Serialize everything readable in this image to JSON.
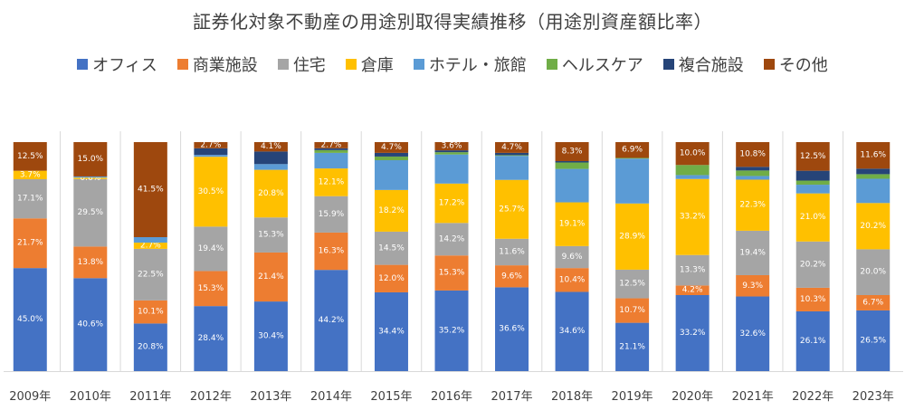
{
  "chart_data": {
    "type": "bar",
    "stacked": true,
    "title": "証券化対象不動産の用途別取得実績推移（用途別資産額比率）",
    "xlabel": "",
    "ylabel": "",
    "ylim": [
      0,
      100
    ],
    "grid": false,
    "legend_position": "top",
    "categories": [
      "2009年",
      "2010年",
      "2011年",
      "2012年",
      "2013年",
      "2014年",
      "2015年",
      "2016年",
      "2017年",
      "2018年",
      "2019年",
      "2020年",
      "2021年",
      "2022年",
      "2023年"
    ],
    "series": [
      {
        "name": "オフィス",
        "color": "#4472C4",
        "values": [
          45.0,
          40.6,
          20.8,
          28.4,
          30.4,
          44.2,
          34.4,
          35.2,
          36.6,
          34.6,
          21.1,
          33.2,
          32.6,
          26.1,
          26.5
        ],
        "labeled": [
          true,
          true,
          true,
          true,
          true,
          true,
          true,
          true,
          true,
          true,
          true,
          true,
          true,
          true,
          true
        ]
      },
      {
        "name": "商業施設",
        "color": "#ED7D31",
        "values": [
          21.7,
          13.8,
          10.1,
          15.3,
          21.4,
          16.3,
          12.0,
          15.3,
          9.6,
          10.4,
          10.7,
          4.2,
          9.3,
          10.3,
          6.7
        ],
        "labeled": [
          true,
          true,
          true,
          true,
          true,
          true,
          true,
          true,
          true,
          true,
          true,
          true,
          true,
          true,
          true
        ]
      },
      {
        "name": "住宅",
        "color": "#A5A5A5",
        "values": [
          17.1,
          29.5,
          22.5,
          19.4,
          15.3,
          15.9,
          14.5,
          14.2,
          11.6,
          9.6,
          12.5,
          13.3,
          19.4,
          20.2,
          20.0
        ],
        "labeled": [
          true,
          true,
          true,
          true,
          true,
          true,
          true,
          true,
          true,
          true,
          true,
          true,
          true,
          true,
          true
        ]
      },
      {
        "name": "倉庫",
        "color": "#FFC000",
        "values": [
          3.7,
          0.6,
          2.7,
          30.5,
          20.8,
          12.1,
          18.2,
          17.2,
          25.7,
          19.1,
          28.9,
          33.2,
          22.3,
          21.0,
          20.2
        ],
        "labeled": [
          true,
          true,
          true,
          true,
          true,
          true,
          true,
          true,
          true,
          true,
          true,
          true,
          true,
          true,
          true
        ]
      },
      {
        "name": "ホテル・旅館",
        "color": "#5B9BD5",
        "values": [
          0.0,
          0.5,
          2.4,
          0.8,
          2.5,
          6.8,
          13.0,
          12.7,
          10.5,
          14.6,
          19.6,
          1.7,
          1.6,
          3.8,
          10.6
        ],
        "labeled": [
          false,
          false,
          false,
          false,
          false,
          false,
          false,
          false,
          false,
          false,
          false,
          false,
          false,
          false,
          false
        ]
      },
      {
        "name": "ヘルスケア",
        "color": "#70AD47",
        "values": [
          0.0,
          0.0,
          0.0,
          0.0,
          0.0,
          1.2,
          1.6,
          1.0,
          0.3,
          2.8,
          0.3,
          4.4,
          2.4,
          1.8,
          2.0
        ],
        "labeled": [
          false,
          false,
          false,
          false,
          false,
          false,
          false,
          false,
          false,
          false,
          false,
          false,
          false,
          false,
          false
        ]
      },
      {
        "name": "複合施設",
        "color": "#264478",
        "values": [
          0.0,
          0.0,
          0.0,
          2.9,
          5.5,
          0.8,
          1.6,
          0.8,
          1.0,
          0.6,
          0.0,
          0.0,
          1.6,
          4.3,
          2.4
        ],
        "labeled": [
          false,
          false,
          false,
          false,
          false,
          false,
          false,
          false,
          false,
          false,
          false,
          false,
          false,
          false,
          false
        ]
      },
      {
        "name": "その他",
        "color": "#9E480E",
        "values": [
          12.5,
          15.0,
          41.5,
          2.7,
          4.1,
          2.7,
          4.7,
          3.6,
          4.7,
          8.3,
          6.9,
          10.0,
          10.8,
          12.5,
          11.6
        ],
        "labeled": [
          true,
          true,
          true,
          true,
          true,
          true,
          true,
          true,
          true,
          true,
          true,
          true,
          true,
          true,
          true
        ]
      }
    ]
  }
}
